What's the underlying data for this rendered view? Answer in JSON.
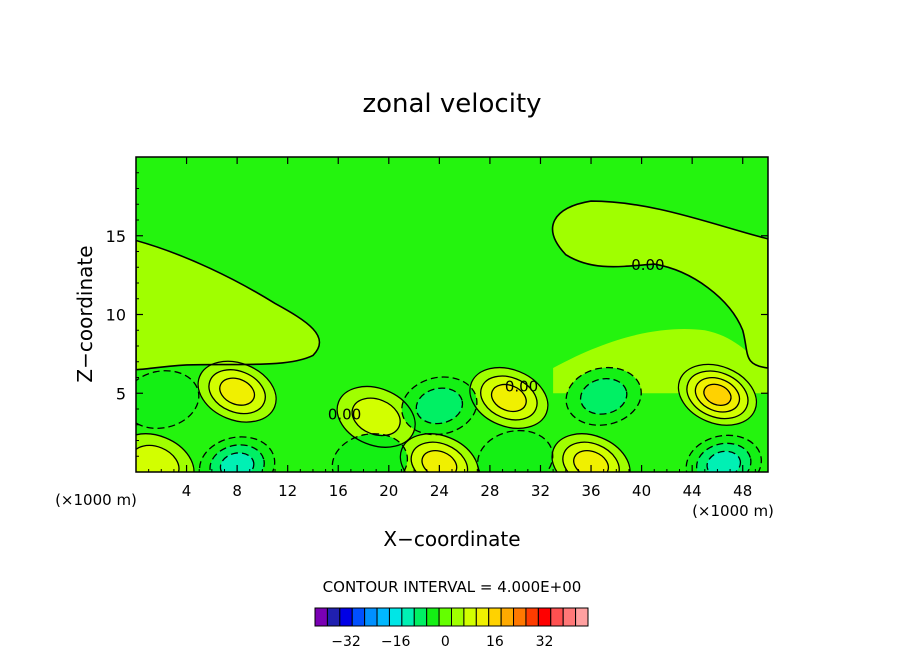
{
  "chart_data": {
    "type": "contour",
    "title": "zonal velocity",
    "xlabel": "X−coordinate",
    "ylabel": "Z−coordinate",
    "x_unit_left": "(×1000 m)",
    "x_unit_right": "(×1000 m)",
    "xlim": [
      0,
      50
    ],
    "ylim": [
      0,
      20
    ],
    "xticks": [
      4,
      8,
      12,
      16,
      20,
      24,
      28,
      32,
      36,
      40,
      44,
      48
    ],
    "yticks": [
      5,
      10,
      15
    ],
    "contour_interval_text": "CONTOUR INTERVAL =  4.000E+00",
    "contour_labels": [
      {
        "text": "0.00",
        "x": 40.5,
        "z": 13.2
      },
      {
        "text": "0.00",
        "x": 30.5,
        "z": 5.5
      },
      {
        "text": "0.00",
        "x": 16.5,
        "z": 3.7
      }
    ],
    "colorbar": {
      "ticks": [
        "−32",
        "−16",
        "0",
        "16",
        "32"
      ],
      "colors": [
        "#7a00b4",
        "#2020b0",
        "#0000e6",
        "#0050ff",
        "#0090ff",
        "#00b8ff",
        "#00e6e6",
        "#00f0b4",
        "#00f064",
        "#14f014",
        "#64ff00",
        "#a0ff00",
        "#d2ff00",
        "#f0f000",
        "#ffd200",
        "#ffaa00",
        "#ff7800",
        "#ff3c00",
        "#ff0000",
        "#ff5050",
        "#ff7878",
        "#ffa0a0"
      ]
    },
    "features": [
      {
        "sign": "positive",
        "x": 8.0,
        "z": 5.1,
        "peak": 12
      },
      {
        "sign": "positive",
        "x": 29.5,
        "z": 4.7,
        "peak": 12
      },
      {
        "sign": "positive",
        "x": 46.0,
        "z": 4.9,
        "peak": 16
      },
      {
        "sign": "positive",
        "x": 24.0,
        "z": 0.5,
        "peak": 12
      },
      {
        "sign": "positive",
        "x": 36.0,
        "z": 0.5,
        "peak": 12
      },
      {
        "sign": "positive",
        "x": 1.5,
        "z": 0.5,
        "peak": 8
      },
      {
        "sign": "positive",
        "x": 19.0,
        "z": 3.5,
        "peak": 8
      },
      {
        "sign": "negative",
        "x": 8.0,
        "z": 0.4,
        "peak": -12
      },
      {
        "sign": "negative",
        "x": 46.5,
        "z": 0.5,
        "peak": -12
      },
      {
        "sign": "negative",
        "x": 37.0,
        "z": 4.8,
        "peak": -8
      },
      {
        "sign": "negative",
        "x": 24.0,
        "z": 4.2,
        "peak": -8
      },
      {
        "sign": "negative",
        "x": 2.0,
        "z": 4.6,
        "peak": -4
      },
      {
        "sign": "negative",
        "x": 30.0,
        "z": 0.8,
        "peak": -4
      },
      {
        "sign": "negative",
        "x": 18.5,
        "z": 0.6,
        "peak": -4
      }
    ]
  }
}
